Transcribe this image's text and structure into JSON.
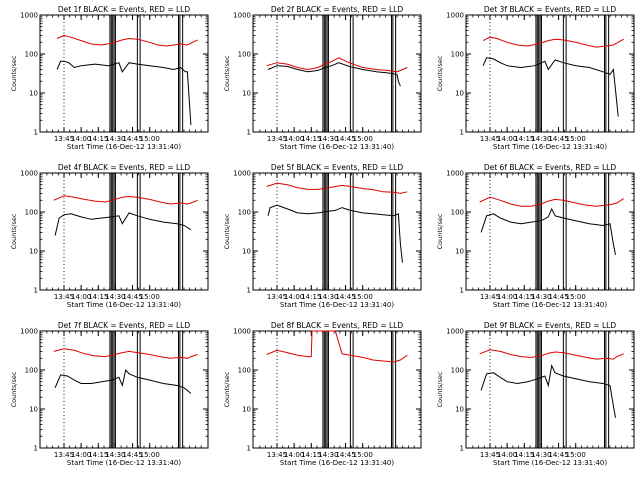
{
  "chart_data": [
    {
      "type": "line",
      "title": "Det 1f BLACK = Events, RED = LLD",
      "xlabel": "Start Time (16-Dec-12 13:31:40)",
      "ylabel": "Counts/sec",
      "x_ticks": [
        "13:45",
        "14:00",
        "14:15",
        "14:30",
        "14:45",
        "15:00"
      ],
      "y_ticks": [
        "1",
        "10",
        "100",
        "1000"
      ],
      "ylim": [
        1,
        1000
      ],
      "y_scale": "log",
      "series": [
        {
          "color": "#e00000",
          "x": [
            13.65,
            13.75,
            13.85,
            14.0,
            14.15,
            14.3,
            14.45,
            14.6,
            14.7,
            14.82,
            15.0,
            15.12,
            15.25,
            15.35,
            15.45,
            15.55,
            15.6,
            15.7
          ],
          "values": [
            250,
            300,
            270,
            220,
            180,
            170,
            190,
            230,
            250,
            240,
            200,
            170,
            160,
            170,
            180,
            170,
            190,
            230
          ]
        },
        {
          "color": "#000000",
          "x": [
            13.65,
            13.7,
            13.75,
            13.82,
            13.9,
            14.0,
            14.2,
            14.4,
            14.55,
            14.6,
            14.7,
            14.82,
            15.0,
            15.2,
            15.35,
            15.45,
            15.52,
            15.55,
            15.6
          ],
          "values": [
            40,
            65,
            65,
            60,
            45,
            50,
            55,
            50,
            60,
            35,
            60,
            55,
            50,
            45,
            40,
            45,
            35,
            35,
            1.5
          ]
        }
      ]
    },
    {
      "type": "line",
      "title": "Det 2f BLACK = Events, RED = LLD",
      "xlabel": "Start Time (16-Dec-12 13:31:40)",
      "ylabel": "Counts/sec",
      "x_ticks": [
        "13:45",
        "14:00",
        "14:15",
        "14:30",
        "14:45",
        "15:00"
      ],
      "y_ticks": [
        "1",
        "10",
        "100",
        "1000"
      ],
      "ylim": [
        1,
        1000
      ],
      "y_scale": "log",
      "series": [
        {
          "color": "#e00000",
          "x": [
            13.6,
            13.75,
            13.9,
            14.05,
            14.2,
            14.35,
            14.45,
            14.55,
            14.65,
            14.8,
            15.0,
            15.2,
            15.35,
            15.5,
            15.65
          ],
          "values": [
            50,
            60,
            55,
            45,
            40,
            45,
            55,
            65,
            80,
            60,
            45,
            40,
            38,
            35,
            45
          ]
        },
        {
          "color": "#000000",
          "x": [
            13.62,
            13.75,
            13.9,
            14.05,
            14.2,
            14.35,
            14.45,
            14.55,
            14.65,
            14.8,
            15.0,
            15.2,
            15.35,
            15.5,
            15.52,
            15.55
          ],
          "values": [
            40,
            50,
            48,
            40,
            35,
            38,
            45,
            50,
            60,
            48,
            40,
            35,
            33,
            30,
            20,
            15
          ]
        }
      ]
    },
    {
      "type": "line",
      "title": "Det 3f BLACK = Events, RED = LLD",
      "xlabel": "Start Time (16-Dec-12 13:31:40)",
      "ylabel": "Counts/sec",
      "x_ticks": [
        "13:45",
        "14:00",
        "14:15",
        "14:30",
        "14:45",
        "15:00"
      ],
      "y_ticks": [
        "1",
        "10",
        "100",
        "1000"
      ],
      "ylim": [
        1,
        1000
      ],
      "y_scale": "log",
      "series": [
        {
          "color": "#e00000",
          "x": [
            13.65,
            13.75,
            13.85,
            14.0,
            14.15,
            14.3,
            14.45,
            14.6,
            14.7,
            14.82,
            15.0,
            15.15,
            15.3,
            15.45,
            15.55,
            15.6,
            15.7
          ],
          "values": [
            220,
            270,
            250,
            200,
            170,
            160,
            180,
            220,
            240,
            230,
            200,
            170,
            150,
            160,
            170,
            190,
            240
          ]
        },
        {
          "color": "#000000",
          "x": [
            13.65,
            13.7,
            13.8,
            13.9,
            14.0,
            14.2,
            14.4,
            14.55,
            14.6,
            14.7,
            14.82,
            15.0,
            15.2,
            15.4,
            15.5,
            15.55,
            15.58,
            15.62
          ],
          "values": [
            50,
            80,
            75,
            60,
            50,
            45,
            50,
            65,
            40,
            70,
            60,
            50,
            45,
            35,
            30,
            40,
            12,
            2.5
          ]
        }
      ]
    },
    {
      "type": "line",
      "title": "Det 4f BLACK = Events, RED = LLD",
      "xlabel": "Start Time (16-Dec-12 13:31:40)",
      "ylabel": "Counts/sec",
      "x_ticks": [
        "13:45",
        "14:00",
        "14:15",
        "14:30",
        "14:45",
        "15:00"
      ],
      "y_ticks": [
        "1",
        "10",
        "100",
        "1000"
      ],
      "ylim": [
        1,
        1000
      ],
      "y_scale": "log",
      "series": [
        {
          "color": "#e00000",
          "x": [
            13.6,
            13.75,
            13.9,
            14.05,
            14.2,
            14.35,
            14.5,
            14.6,
            14.7,
            14.82,
            15.0,
            15.15,
            15.3,
            15.45,
            15.55,
            15.6,
            15.7
          ],
          "values": [
            200,
            260,
            240,
            210,
            190,
            180,
            210,
            240,
            250,
            240,
            210,
            180,
            160,
            170,
            160,
            170,
            200
          ]
        },
        {
          "color": "#000000",
          "x": [
            13.62,
            13.68,
            13.75,
            13.85,
            14.0,
            14.15,
            14.3,
            14.45,
            14.55,
            14.6,
            14.7,
            14.82,
            15.0,
            15.2,
            15.4,
            15.5,
            15.55,
            15.6
          ],
          "values": [
            25,
            70,
            85,
            90,
            75,
            65,
            70,
            75,
            80,
            50,
            95,
            80,
            65,
            55,
            50,
            45,
            40,
            35
          ]
        }
      ]
    },
    {
      "type": "line",
      "title": "Det 5f BLACK = Events, RED = LLD",
      "xlabel": "Start Time (16-Dec-12 13:31:40)",
      "ylabel": "Counts/sec",
      "x_ticks": [
        "13:45",
        "14:00",
        "14:15",
        "14:30",
        "14:45",
        "15:00"
      ],
      "y_ticks": [
        "1",
        "10",
        "100",
        "1000"
      ],
      "ylim": [
        1,
        1000
      ],
      "y_scale": "log",
      "series": [
        {
          "color": "#e00000",
          "x": [
            13.6,
            13.75,
            13.9,
            14.05,
            14.2,
            14.35,
            14.5,
            14.6,
            14.7,
            14.82,
            15.0,
            15.15,
            15.3,
            15.45,
            15.55,
            15.65
          ],
          "values": [
            450,
            550,
            500,
            420,
            380,
            380,
            420,
            450,
            480,
            450,
            400,
            370,
            330,
            320,
            300,
            330
          ]
        },
        {
          "color": "#000000",
          "x": [
            13.62,
            13.65,
            13.75,
            13.9,
            14.05,
            14.2,
            14.35,
            14.5,
            14.6,
            14.7,
            14.82,
            15.0,
            15.15,
            15.3,
            15.45,
            15.52,
            15.55,
            15.58
          ],
          "values": [
            80,
            130,
            150,
            120,
            95,
            90,
            95,
            105,
            110,
            130,
            110,
            95,
            90,
            85,
            80,
            90,
            15,
            5
          ]
        }
      ]
    },
    {
      "type": "line",
      "title": "Det 6f BLACK = Events, RED = LLD",
      "xlabel": "Start Time (16-Dec-12 13:31:40)",
      "ylabel": "Counts/sec",
      "x_ticks": [
        "13:45",
        "14:00",
        "14:15",
        "14:30",
        "14:45",
        "15:00"
      ],
      "y_ticks": [
        "1",
        "10",
        "100",
        "1000"
      ],
      "ylim": [
        1,
        1000
      ],
      "y_scale": "log",
      "series": [
        {
          "color": "#e00000",
          "x": [
            13.6,
            13.75,
            13.9,
            14.05,
            14.2,
            14.35,
            14.5,
            14.6,
            14.7,
            14.82,
            15.0,
            15.15,
            15.3,
            15.45,
            15.55,
            15.6,
            15.7
          ],
          "values": [
            180,
            240,
            200,
            160,
            140,
            140,
            160,
            190,
            210,
            200,
            170,
            150,
            140,
            150,
            160,
            170,
            220
          ]
        },
        {
          "color": "#000000",
          "x": [
            13.62,
            13.7,
            13.8,
            13.9,
            14.05,
            14.2,
            14.35,
            14.5,
            14.6,
            14.65,
            14.7,
            14.82,
            15.0,
            15.2,
            15.4,
            15.5,
            15.55,
            15.58
          ],
          "values": [
            30,
            80,
            90,
            70,
            55,
            50,
            55,
            60,
            75,
            120,
            80,
            70,
            60,
            50,
            45,
            50,
            15,
            8
          ]
        }
      ]
    },
    {
      "type": "line",
      "title": "Det 7f BLACK = Events, RED = LLD",
      "xlabel": "Start Time (16-Dec-12 13:31:40)",
      "ylabel": "Counts/sec",
      "x_ticks": [
        "13:45",
        "14:00",
        "14:15",
        "14:30",
        "14:45",
        "15:00"
      ],
      "y_ticks": [
        "1",
        "10",
        "100",
        "1000"
      ],
      "ylim": [
        1,
        1000
      ],
      "y_scale": "log",
      "series": [
        {
          "color": "#e00000",
          "x": [
            13.6,
            13.75,
            13.9,
            14.05,
            14.2,
            14.35,
            14.5,
            14.6,
            14.7,
            14.82,
            15.0,
            15.15,
            15.3,
            15.45,
            15.55,
            15.6,
            15.7
          ],
          "values": [
            300,
            350,
            320,
            260,
            230,
            220,
            250,
            280,
            300,
            280,
            250,
            220,
            200,
            210,
            200,
            220,
            250
          ]
        },
        {
          "color": "#000000",
          "x": [
            13.62,
            13.7,
            13.8,
            13.9,
            14.0,
            14.15,
            14.3,
            14.45,
            14.55,
            14.6,
            14.65,
            14.7,
            14.82,
            15.0,
            15.2,
            15.4,
            15.5,
            15.55,
            15.6
          ],
          "values": [
            35,
            75,
            70,
            55,
            45,
            45,
            50,
            55,
            65,
            40,
            100,
            80,
            65,
            55,
            45,
            40,
            35,
            30,
            25
          ]
        }
      ]
    },
    {
      "type": "line",
      "title": "Det 8f BLACK = Events, RED = LLD",
      "xlabel": "Start Time (16-Dec-12 13:31:40)",
      "ylabel": "Counts/sec",
      "x_ticks": [
        "13:45",
        "14:00",
        "14:15",
        "14:30",
        "14:45",
        "15:00"
      ],
      "y_ticks": [
        "1",
        "10",
        "100",
        "1000"
      ],
      "ylim": [
        1,
        1000
      ],
      "y_scale": "log",
      "series": [
        {
          "color": "#e00000",
          "x": [
            13.6,
            13.75,
            13.9,
            14.05,
            14.2,
            14.25,
            14.26,
            14.35,
            14.5,
            14.6,
            14.7,
            14.82,
            15.0,
            15.15,
            15.3,
            15.45,
            15.55,
            15.65
          ],
          "values": [
            250,
            320,
            280,
            240,
            220,
            220,
            1000,
            1000,
            1000,
            1000,
            260,
            240,
            210,
            180,
            170,
            160,
            180,
            240
          ]
        }
      ]
    },
    {
      "type": "line",
      "title": "Det 9f BLACK = Events, RED = LLD",
      "xlabel": "Start Time (16-Dec-12 13:31:40)",
      "ylabel": "Counts/sec",
      "x_ticks": [
        "13:45",
        "14:00",
        "14:15",
        "14:30",
        "14:45",
        "15:00"
      ],
      "y_ticks": [
        "1",
        "10",
        "100",
        "1000"
      ],
      "ylim": [
        1,
        1000
      ],
      "y_scale": "log",
      "series": [
        {
          "color": "#e00000",
          "x": [
            13.6,
            13.75,
            13.9,
            14.05,
            14.2,
            14.35,
            14.5,
            14.6,
            14.7,
            14.82,
            15.0,
            15.15,
            15.3,
            15.45,
            15.55,
            15.6,
            15.7
          ],
          "values": [
            260,
            330,
            300,
            250,
            220,
            210,
            230,
            270,
            290,
            280,
            240,
            210,
            190,
            200,
            190,
            220,
            260
          ]
        },
        {
          "color": "#000000",
          "x": [
            13.62,
            13.7,
            13.8,
            13.9,
            14.0,
            14.15,
            14.3,
            14.45,
            14.55,
            14.6,
            14.65,
            14.7,
            14.82,
            15.0,
            15.2,
            15.4,
            15.5,
            15.55,
            15.58
          ],
          "values": [
            30,
            80,
            85,
            65,
            50,
            45,
            50,
            60,
            70,
            40,
            130,
            85,
            70,
            60,
            50,
            45,
            40,
            12,
            6
          ]
        }
      ]
    }
  ]
}
